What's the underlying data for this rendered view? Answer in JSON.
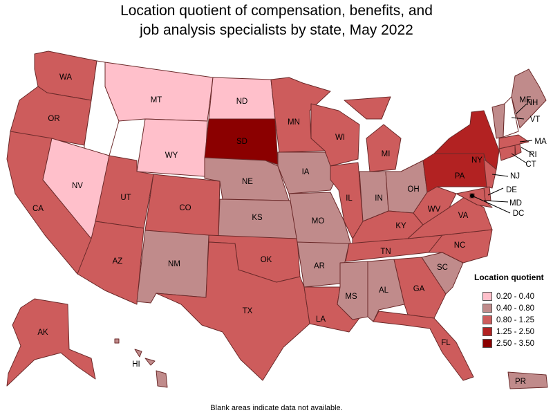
{
  "title_line1": "Location quotient of compensation, benefits, and",
  "title_line2": "job analysis specialists by state, May 2022",
  "legend": {
    "title": "Location quotient",
    "items": [
      {
        "label": "0.20 - 0.40",
        "color": "#ffc0cb"
      },
      {
        "label": "0.40 - 0.80",
        "color": "#c08b8b"
      },
      {
        "label": "0.80 - 1.25",
        "color": "#cd5c5c"
      },
      {
        "label": "1.25 - 2.50",
        "color": "#b22222"
      },
      {
        "label": "2.50 - 3.50",
        "color": "#8b0000"
      }
    ]
  },
  "footnote": "Blank areas indicate data not available.",
  "no_data_color": "#ffffff",
  "states": {
    "WA": 3,
    "OR": 3,
    "CA": 3,
    "NV": 1,
    "ID": 0,
    "MT": 1,
    "WY": 1,
    "UT": 3,
    "AZ": 3,
    "CO": 3,
    "NM": 2,
    "ND": 1,
    "SD": 5,
    "NE": 2,
    "KS": 2,
    "OK": 3,
    "TX": 3,
    "MN": 3,
    "IA": 2,
    "MO": 2,
    "AR": 2,
    "LA": 3,
    "WI": 3,
    "IL": 3,
    "MI": 3,
    "IN": 2,
    "OH": 2,
    "KY": 3,
    "TN": 3,
    "MS": 2,
    "AL": 2,
    "GA": 3,
    "FL": 3,
    "SC": 2,
    "NC": 3,
    "VA": 3,
    "WV": 3,
    "PA": 4,
    "NY": 4,
    "VT": 2,
    "NH": 0,
    "ME": 2,
    "MA": 3,
    "RI": 3,
    "CT": 3,
    "NJ": 3,
    "DE": 3,
    "MD": 3,
    "DC": 3,
    "AK": 3,
    "HI": 2,
    "PR": 2
  },
  "labels": {
    "WA": "WA",
    "OR": "OR",
    "CA": "CA",
    "NV": "NV",
    "MT": "MT",
    "WY": "WY",
    "UT": "UT",
    "AZ": "AZ",
    "CO": "CO",
    "NM": "NM",
    "ND": "ND",
    "SD": "SD",
    "NE": "NE",
    "KS": "KS",
    "OK": "OK",
    "TX": "TX",
    "MN": "MN",
    "IA": "IA",
    "MO": "MO",
    "AR": "AR",
    "LA": "LA",
    "WI": "WI",
    "IL": "IL",
    "MI": "MI",
    "IN": "IN",
    "OH": "OH",
    "KY": "KY",
    "TN": "TN",
    "MS": "MS",
    "AL": "AL",
    "GA": "GA",
    "FL": "FL",
    "SC": "SC",
    "NC": "NC",
    "VA": "VA",
    "WV": "WV",
    "PA": "PA",
    "NY": "NY",
    "VT": "VT",
    "NH": "NH",
    "ME": "ME",
    "MA": "MA",
    "RI": "RI",
    "CT": "CT",
    "NJ": "NJ",
    "DE": "DE",
    "MD": "MD",
    "DC": "DC",
    "AK": "AK",
    "HI": "HI",
    "PR": "PR"
  }
}
